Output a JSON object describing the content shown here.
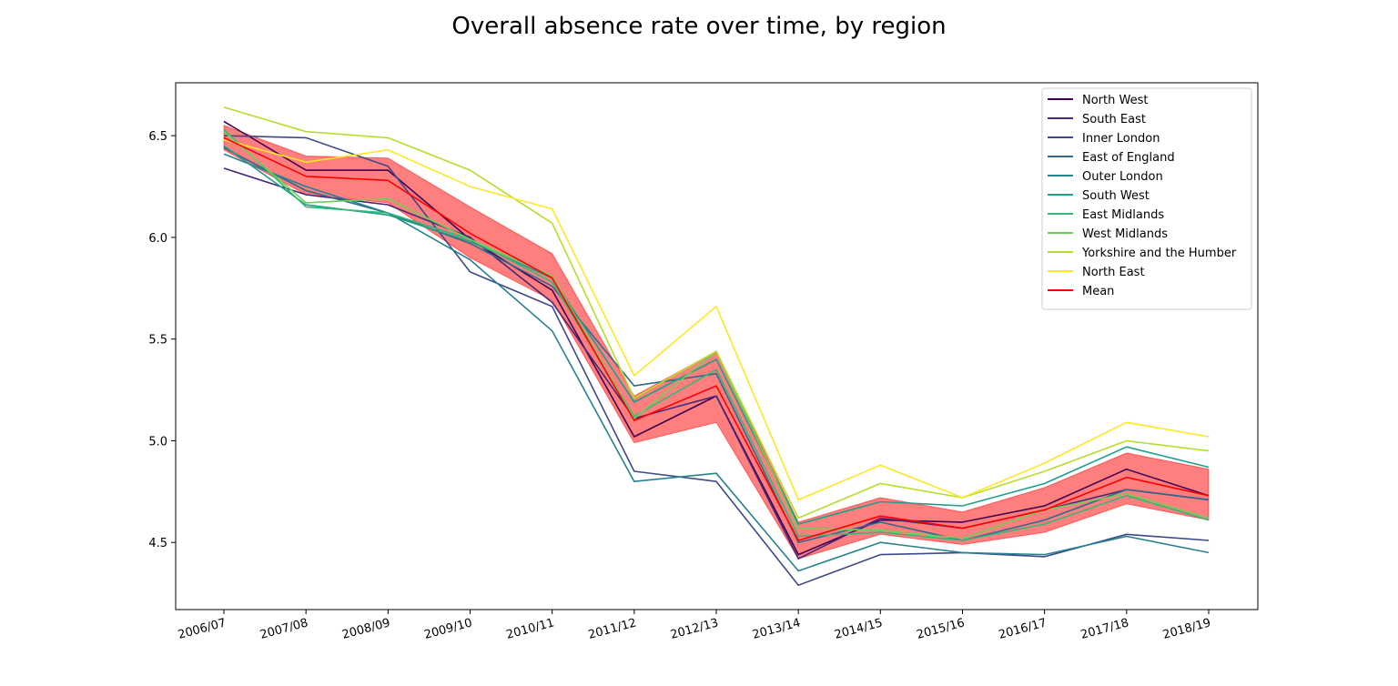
{
  "chart_data": {
    "type": "line",
    "title": "Overall absence rate over time, by region",
    "xlabel": "",
    "ylabel": "",
    "categories": [
      "2006/07",
      "2007/08",
      "2008/09",
      "2009/10",
      "2010/11",
      "2011/12",
      "2012/13",
      "2013/14",
      "2014/15",
      "2015/16",
      "2016/17",
      "2017/18",
      "2018/19"
    ],
    "ylim": [
      4.17,
      6.76
    ],
    "yticks": [
      4.5,
      5.0,
      5.5,
      6.0,
      6.5
    ],
    "ytick_labels": [
      "4.5",
      "5.0",
      "5.5",
      "6.0",
      "6.5"
    ],
    "grid": false,
    "legend_position": "top-right",
    "series": [
      {
        "name": "North West",
        "color": "#440154",
        "values": [
          6.57,
          6.33,
          6.33,
          5.99,
          5.74,
          5.02,
          5.22,
          4.44,
          4.61,
          4.6,
          4.68,
          4.86,
          4.73
        ]
      },
      {
        "name": "South East",
        "color": "#482878",
        "values": [
          6.34,
          6.21,
          6.16,
          6.0,
          5.68,
          5.11,
          5.22,
          4.42,
          4.62,
          4.57,
          4.66,
          4.76,
          4.71
        ]
      },
      {
        "name": "Inner London",
        "color": "#3e4989",
        "values": [
          6.5,
          6.49,
          6.35,
          5.83,
          5.66,
          4.85,
          4.8,
          4.29,
          4.44,
          4.45,
          4.43,
          4.54,
          4.51
        ]
      },
      {
        "name": "East of England",
        "color": "#31688e",
        "values": [
          6.44,
          6.23,
          6.12,
          5.97,
          5.76,
          5.27,
          5.33,
          4.5,
          4.6,
          4.51,
          4.61,
          4.76,
          4.71
        ]
      },
      {
        "name": "Outer London",
        "color": "#26828e",
        "values": [
          6.41,
          6.25,
          6.12,
          5.89,
          5.54,
          4.8,
          4.84,
          4.36,
          4.5,
          4.45,
          4.44,
          4.53,
          4.45
        ]
      },
      {
        "name": "South West",
        "color": "#1f9e89",
        "values": [
          6.45,
          6.16,
          6.11,
          5.98,
          5.8,
          5.19,
          5.4,
          4.59,
          4.7,
          4.68,
          4.79,
          4.97,
          4.87
        ]
      },
      {
        "name": "East Midlands",
        "color": "#35b779",
        "values": [
          6.53,
          6.15,
          6.12,
          5.99,
          5.78,
          5.12,
          5.35,
          4.53,
          4.55,
          4.51,
          4.59,
          4.73,
          4.61
        ]
      },
      {
        "name": "West Midlands",
        "color": "#6ece58",
        "values": [
          6.52,
          6.17,
          6.19,
          5.99,
          5.81,
          5.11,
          5.44,
          4.57,
          4.56,
          4.52,
          4.66,
          4.74,
          4.62
        ]
      },
      {
        "name": "Yorkshire and the Humber",
        "color": "#b5de2b",
        "values": [
          6.64,
          6.52,
          6.49,
          6.33,
          6.07,
          5.21,
          5.44,
          4.62,
          4.79,
          4.72,
          4.85,
          5.0,
          4.95
        ]
      },
      {
        "name": "North East",
        "color": "#fde725",
        "values": [
          6.48,
          6.37,
          6.43,
          6.25,
          6.14,
          5.32,
          5.66,
          4.71,
          4.88,
          4.72,
          4.89,
          5.09,
          5.02
        ]
      },
      {
        "name": "Mean",
        "color": "#ff0000",
        "values": [
          6.49,
          6.3,
          6.28,
          6.02,
          5.8,
          5.1,
          5.27,
          4.51,
          4.63,
          4.57,
          4.66,
          4.82,
          4.73
        ]
      }
    ],
    "band": {
      "color": "#ff0000",
      "opacity": 0.5,
      "upper": [
        6.55,
        6.4,
        6.39,
        6.15,
        5.92,
        5.22,
        5.44,
        4.6,
        4.72,
        4.65,
        4.77,
        4.94,
        4.86
      ],
      "lower": [
        6.43,
        6.21,
        6.17,
        5.9,
        5.69,
        4.99,
        5.09,
        4.42,
        4.54,
        4.49,
        4.55,
        4.69,
        4.61
      ]
    }
  }
}
